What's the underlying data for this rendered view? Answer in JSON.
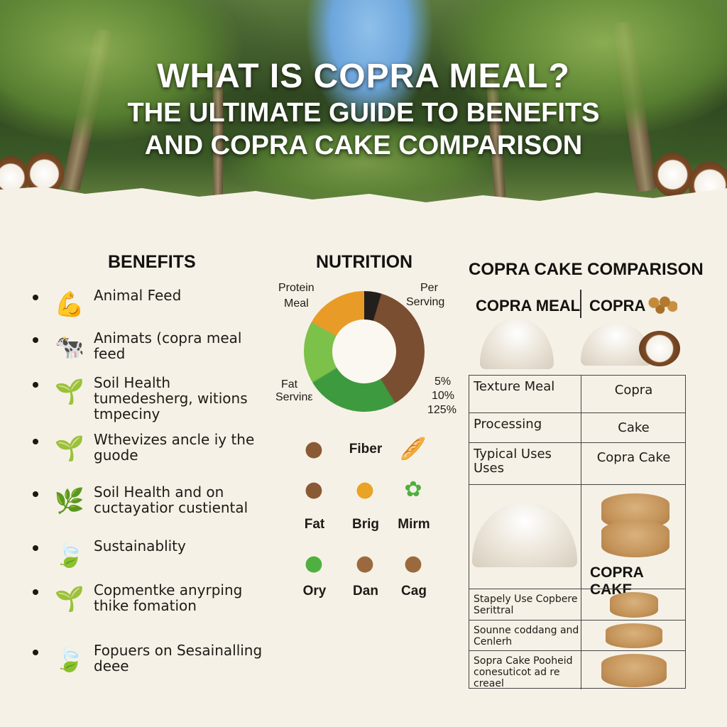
{
  "header": {
    "line1": "WHAT IS COPRA MEAL?",
    "line2": "THE ULTIMATE GUIDE TO BENEFITS",
    "line3": "AND COPRA CAKE COMPARISON"
  },
  "benefits": {
    "title": "BENEFITS",
    "items": [
      {
        "icon": "muscle-arm-icon",
        "text": "Animal Feed"
      },
      {
        "icon": "cow-icon",
        "text": "Animats (copra meal feed"
      },
      {
        "icon": "sprout-icon",
        "text": "Soil Health tumedesherg, witions tmpeciny"
      },
      {
        "icon": "sprout-icon",
        "text": "Wthevizes ancle iy the guode"
      },
      {
        "icon": "root-icon",
        "text": "Soil Health and on cuctayatior custiental"
      },
      {
        "icon": "leaves-icon",
        "text": "Sustainablity"
      },
      {
        "icon": "seedling-icon",
        "text": "Copmentke anyrping thike fomation"
      },
      {
        "icon": "leaf-icon",
        "text": "Fopuers on Sesainalling deee"
      }
    ]
  },
  "nutrition": {
    "title": "NUTRITION",
    "donut_colors": [
      "#231f1c",
      "#7a4e30",
      "#3d9a3e",
      "#7cc14a",
      "#e99b27"
    ],
    "labels": {
      "protein": "Protein",
      "meal": "Meal",
      "per": "Per",
      "serving": "Serving",
      "fat": "Fat",
      "fat_serving": "Servinε",
      "p1": "5%",
      "p2": "10%",
      "p3": "125%"
    },
    "icons": [
      {
        "icon": "nuts-icon",
        "label": ""
      },
      {
        "icon": "",
        "label": "Fiber"
      },
      {
        "icon": "bread-icon",
        "label": ""
      },
      {
        "icon": "beans-icon",
        "label": "Fat"
      },
      {
        "icon": "seeds-icon",
        "label": "Brig"
      },
      {
        "icon": "broccoli-icon",
        "label": "Mirm"
      },
      {
        "icon": "cabbage-icon",
        "label": "Ory"
      },
      {
        "icon": "onion-icon",
        "label": "Dan"
      },
      {
        "icon": "drumstick-icon",
        "label": "Cag"
      }
    ]
  },
  "comparison": {
    "title": "COPRA CAKE COMPARISON",
    "col1": "COPRA MEAL",
    "col2": "COPRA",
    "rows": [
      {
        "c1": "Texture Meal",
        "c2": "Copra"
      },
      {
        "c1": "Processing",
        "c2": "Cake"
      },
      {
        "c1": "Typical Uses Uses",
        "c2": "Copra Cake"
      }
    ],
    "image_label": "COPRA CAKE",
    "small_rows": [
      "Stapely Use Copbere Serittral",
      "Sounne coddang and Cenlerh",
      "Sopra Cake Pooheid conesuticot ad re creael"
    ]
  }
}
